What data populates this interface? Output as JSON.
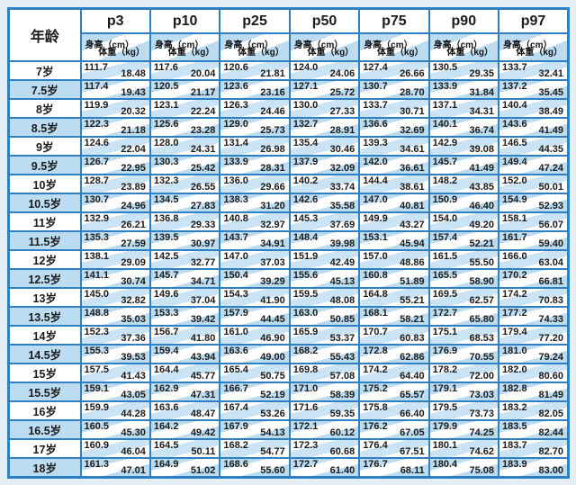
{
  "colors": {
    "border_blue": "#2e80c2",
    "cell_blue": "#bcdcf1",
    "band_blue": "#cbe4f5",
    "white": "#ffffff",
    "page_background": "#e4eef6",
    "text": "#1b1b1b"
  },
  "chart_data": {
    "type": "table",
    "age_header": "年龄",
    "height_label": "身高（cm）",
    "weight_label": "体重（kg）",
    "percentile_columns": [
      "p3",
      "p10",
      "p25",
      "p50",
      "p75",
      "p90",
      "p97"
    ],
    "rows": [
      {
        "age": "7岁",
        "cells": [
          [
            "111.7",
            "18.48"
          ],
          [
            "117.6",
            "20.04"
          ],
          [
            "120.6",
            "21.81"
          ],
          [
            "124.0",
            "24.06"
          ],
          [
            "127.4",
            "26.66"
          ],
          [
            "130.5",
            "29.35"
          ],
          [
            "133.7",
            "32.41"
          ]
        ]
      },
      {
        "age": "7.5岁",
        "cells": [
          [
            "117.4",
            "19.43"
          ],
          [
            "120.5",
            "21.17"
          ],
          [
            "123.6",
            "23.16"
          ],
          [
            "127.1",
            "25.72"
          ],
          [
            "130.7",
            "28.70"
          ],
          [
            "133.9",
            "31.84"
          ],
          [
            "137.2",
            "35.45"
          ]
        ]
      },
      {
        "age": "8岁",
        "cells": [
          [
            "119.9",
            "20.32"
          ],
          [
            "123.1",
            "22.24"
          ],
          [
            "126.3",
            "24.46"
          ],
          [
            "130.0",
            "27.33"
          ],
          [
            "133.7",
            "30.71"
          ],
          [
            "137.1",
            "34.31"
          ],
          [
            "140.4",
            "38.49"
          ]
        ]
      },
      {
        "age": "8.5岁",
        "cells": [
          [
            "122.3",
            "21.18"
          ],
          [
            "125.6",
            "23.28"
          ],
          [
            "129.0",
            "25.73"
          ],
          [
            "132.7",
            "28.91"
          ],
          [
            "136.6",
            "32.69"
          ],
          [
            "140.1",
            "36.74"
          ],
          [
            "143.6",
            "41.49"
          ]
        ]
      },
      {
        "age": "9岁",
        "cells": [
          [
            "124.6",
            "22.04"
          ],
          [
            "128.0",
            "24.31"
          ],
          [
            "131.4",
            "26.98"
          ],
          [
            "135.4",
            "30.46"
          ],
          [
            "139.3",
            "34.61"
          ],
          [
            "142.9",
            "39.08"
          ],
          [
            "146.5",
            "44.35"
          ]
        ]
      },
      {
        "age": "9.5岁",
        "cells": [
          [
            "126.7",
            "22.95"
          ],
          [
            "130.3",
            "25.42"
          ],
          [
            "133.9",
            "28.31"
          ],
          [
            "137.9",
            "32.09"
          ],
          [
            "142.0",
            "36.61"
          ],
          [
            "145.7",
            "41.49"
          ],
          [
            "149.4",
            "47.24"
          ]
        ]
      },
      {
        "age": "10岁",
        "cells": [
          [
            "128.7",
            "23.89"
          ],
          [
            "132.3",
            "26.55"
          ],
          [
            "136.0",
            "29.66"
          ],
          [
            "140.2",
            "33.74"
          ],
          [
            "144.4",
            "38.61"
          ],
          [
            "148.2",
            "43.85"
          ],
          [
            "152.0",
            "50.01"
          ]
        ]
      },
      {
        "age": "10.5岁",
        "cells": [
          [
            "130.7",
            "24.96"
          ],
          [
            "134.5",
            "27.83"
          ],
          [
            "138.3",
            "31.20"
          ],
          [
            "142.6",
            "35.58"
          ],
          [
            "147.0",
            "40.81"
          ],
          [
            "150.9",
            "46.40"
          ],
          [
            "154.9",
            "52.93"
          ]
        ]
      },
      {
        "age": "11岁",
        "cells": [
          [
            "132.9",
            "26.21"
          ],
          [
            "136.8",
            "29.33"
          ],
          [
            "140.8",
            "32.97"
          ],
          [
            "145.3",
            "37.69"
          ],
          [
            "149.9",
            "43.27"
          ],
          [
            "154.0",
            "49.20"
          ],
          [
            "158.1",
            "56.07"
          ]
        ]
      },
      {
        "age": "11.5岁",
        "cells": [
          [
            "135.3",
            "27.59"
          ],
          [
            "139.5",
            "30.97"
          ],
          [
            "143.7",
            "34.91"
          ],
          [
            "148.4",
            "39.98"
          ],
          [
            "153.1",
            "45.94"
          ],
          [
            "157.4",
            "52.21"
          ],
          [
            "161.7",
            "59.40"
          ]
        ]
      },
      {
        "age": "12岁",
        "cells": [
          [
            "138.1",
            "29.09"
          ],
          [
            "142.5",
            "32.77"
          ],
          [
            "147.0",
            "37.03"
          ],
          [
            "151.9",
            "42.49"
          ],
          [
            "157.0",
            "48.86"
          ],
          [
            "161.5",
            "55.50"
          ],
          [
            "166.0",
            "63.04"
          ]
        ]
      },
      {
        "age": "12.5岁",
        "cells": [
          [
            "141.1",
            "30.74"
          ],
          [
            "145.7",
            "34.71"
          ],
          [
            "150.4",
            "39.29"
          ],
          [
            "155.6",
            "45.13"
          ],
          [
            "160.8",
            "51.89"
          ],
          [
            "165.5",
            "58.90"
          ],
          [
            "170.2",
            "66.81"
          ]
        ]
      },
      {
        "age": "13岁",
        "cells": [
          [
            "145.0",
            "32.82"
          ],
          [
            "149.6",
            "37.04"
          ],
          [
            "154.3",
            "41.90"
          ],
          [
            "159.5",
            "48.08"
          ],
          [
            "164.8",
            "55.21"
          ],
          [
            "169.5",
            "62.57"
          ],
          [
            "174.2",
            "70.83"
          ]
        ]
      },
      {
        "age": "13.5岁",
        "cells": [
          [
            "148.8",
            "35.03"
          ],
          [
            "153.3",
            "39.42"
          ],
          [
            "157.9",
            "44.45"
          ],
          [
            "163.0",
            "50.85"
          ],
          [
            "168.1",
            "58.21"
          ],
          [
            "172.7",
            "65.80"
          ],
          [
            "177.2",
            "74.33"
          ]
        ]
      },
      {
        "age": "14岁",
        "cells": [
          [
            "152.3",
            "37.36"
          ],
          [
            "156.7",
            "41.80"
          ],
          [
            "161.0",
            "46.90"
          ],
          [
            "165.9",
            "53.37"
          ],
          [
            "170.7",
            "60.83"
          ],
          [
            "175.1",
            "68.53"
          ],
          [
            "179.4",
            "77.20"
          ]
        ]
      },
      {
        "age": "14.5岁",
        "cells": [
          [
            "155.3",
            "39.53"
          ],
          [
            "159.4",
            "43.94"
          ],
          [
            "163.6",
            "49.00"
          ],
          [
            "168.2",
            "55.43"
          ],
          [
            "172.8",
            "62.86"
          ],
          [
            "176.9",
            "70.55"
          ],
          [
            "181.0",
            "79.24"
          ]
        ]
      },
      {
        "age": "15岁",
        "cells": [
          [
            "157.5",
            "41.43"
          ],
          [
            "164.4",
            "45.77"
          ],
          [
            "165.4",
            "50.75"
          ],
          [
            "169.8",
            "57.08"
          ],
          [
            "174.2",
            "64.40"
          ],
          [
            "178.2",
            "72.00"
          ],
          [
            "182.0",
            "80.60"
          ]
        ]
      },
      {
        "age": "15.5岁",
        "cells": [
          [
            "159.1",
            "43.05"
          ],
          [
            "162.9",
            "47.31"
          ],
          [
            "166.7",
            "52.19"
          ],
          [
            "171.0",
            "58.39"
          ],
          [
            "175.2",
            "65.57"
          ],
          [
            "179.1",
            "73.03"
          ],
          [
            "182.8",
            "81.49"
          ]
        ]
      },
      {
        "age": "16岁",
        "cells": [
          [
            "159.9",
            "44.28"
          ],
          [
            "163.6",
            "48.47"
          ],
          [
            "167.4",
            "53.26"
          ],
          [
            "171.6",
            "59.35"
          ],
          [
            "175.8",
            "66.40"
          ],
          [
            "179.5",
            "73.73"
          ],
          [
            "183.2",
            "82.05"
          ]
        ]
      },
      {
        "age": "16.5岁",
        "cells": [
          [
            "160.5",
            "45.30"
          ],
          [
            "164.2",
            "49.42"
          ],
          [
            "167.9",
            "54.13"
          ],
          [
            "172.1",
            "60.12"
          ],
          [
            "176.2",
            "67.05"
          ],
          [
            "179.9",
            "74.25"
          ],
          [
            "183.5",
            "82.44"
          ]
        ]
      },
      {
        "age": "17岁",
        "cells": [
          [
            "160.9",
            "46.04"
          ],
          [
            "164.5",
            "50.11"
          ],
          [
            "168.2",
            "54.77"
          ],
          [
            "172.3",
            "60.68"
          ],
          [
            "176.4",
            "67.51"
          ],
          [
            "180.1",
            "74.62"
          ],
          [
            "183.7",
            "82.70"
          ]
        ]
      },
      {
        "age": "18岁",
        "cells": [
          [
            "161.3",
            "47.01"
          ],
          [
            "164.9",
            "51.02"
          ],
          [
            "168.6",
            "55.60"
          ],
          [
            "172.7",
            "61.40"
          ],
          [
            "176.7",
            "68.11"
          ],
          [
            "180.4",
            "75.08"
          ],
          [
            "183.9",
            "83.00"
          ]
        ]
      }
    ]
  }
}
